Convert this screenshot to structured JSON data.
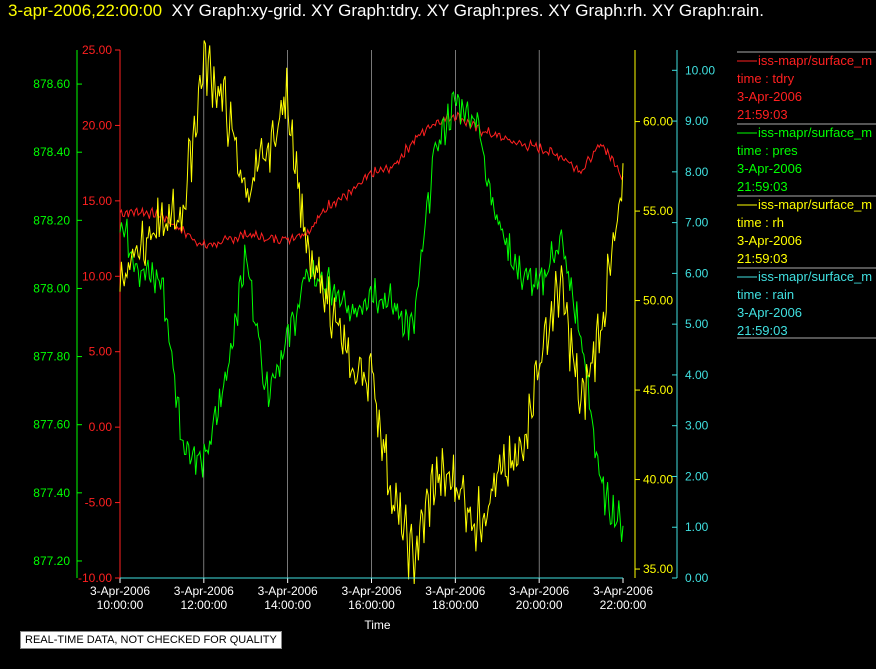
{
  "header": {
    "timestamp": "3-apr-2006,22:00:00",
    "graph_titles": "XY Graph:xy-grid.  XY Graph:tdry.  XY Graph:pres.  XY Graph:rh.  XY Graph:rain."
  },
  "notice": "REAL-TIME DATA, NOT CHECKED FOR QUALITY",
  "colors": {
    "tdry": "#ff2020",
    "pres": "#00ff00",
    "rh": "#ffff00",
    "rain": "#40e0e0",
    "grid": "#c8c8c8"
  },
  "chart_data": {
    "type": "line",
    "xlabel": "Time",
    "xlim": [
      "3-Apr-2006 10:00:00",
      "3-Apr-2006 22:00:00"
    ],
    "x_ticks": [
      {
        "date": "3-Apr-2006",
        "time": "10:00:00"
      },
      {
        "date": "3-Apr-2006",
        "time": "12:00:00"
      },
      {
        "date": "3-Apr-2006",
        "time": "14:00:00"
      },
      {
        "date": "3-Apr-2006",
        "time": "16:00:00"
      },
      {
        "date": "3-Apr-2006",
        "time": "18:00:00"
      },
      {
        "date": "3-Apr-2006",
        "time": "20:00:00"
      },
      {
        "date": "3-Apr-2006",
        "time": "22:00:00"
      }
    ],
    "axes": {
      "pres": {
        "ylim": [
          877.15,
          878.7
        ],
        "ticks": [
          "878.60",
          "878.40",
          "878.20",
          "878.00",
          "877.80",
          "877.60",
          "877.40",
          "877.20"
        ]
      },
      "tdry": {
        "ylim": [
          -10,
          25
        ],
        "ticks": [
          "25.00",
          "20.00",
          "15.00",
          "10.00",
          "5.00",
          "0.00",
          "-5.00",
          "-10.00"
        ]
      },
      "rh": {
        "ylim": [
          34.5,
          64
        ],
        "ticks": [
          "60.00",
          "55.00",
          "50.00",
          "45.00",
          "40.00",
          "35.00"
        ]
      },
      "rain": {
        "ylim": [
          0,
          10.4
        ],
        "ticks": [
          "10.00",
          "9.00",
          "8.00",
          "7.00",
          "6.00",
          "5.00",
          "4.00",
          "3.00",
          "2.00",
          "1.00",
          "0.00"
        ]
      }
    },
    "series": [
      {
        "name": "tdry",
        "axis": "tdry",
        "x": [
          "3-Apr-2006 10:00:00",
          "3-Apr-2006 10:30:00",
          "3-Apr-2006 11:00:00",
          "3-Apr-2006 11:30:00",
          "3-Apr-2006 12:00:00",
          "3-Apr-2006 12:30:00",
          "3-Apr-2006 13:00:00",
          "3-Apr-2006 13:30:00",
          "3-Apr-2006 14:00:00",
          "3-Apr-2006 14:30:00",
          "3-Apr-2006 15:00:00",
          "3-Apr-2006 15:30:00",
          "3-Apr-2006 16:00:00",
          "3-Apr-2006 16:30:00",
          "3-Apr-2006 17:00:00",
          "3-Apr-2006 17:30:00",
          "3-Apr-2006 18:00:00",
          "3-Apr-2006 18:30:00",
          "3-Apr-2006 19:00:00",
          "3-Apr-2006 19:30:00",
          "3-Apr-2006 20:00:00",
          "3-Apr-2006 20:30:00",
          "3-Apr-2006 21:00:00",
          "3-Apr-2006 21:30:00",
          "3-Apr-2006 22:00:00"
        ],
        "y": [
          14.2,
          14.3,
          14.0,
          13.0,
          12.0,
          12.3,
          12.8,
          12.5,
          12.5,
          13.0,
          14.8,
          15.5,
          16.8,
          17.2,
          19.0,
          20.2,
          20.7,
          19.8,
          19.3,
          18.8,
          18.5,
          18.0,
          17.0,
          18.8,
          16.6
        ]
      },
      {
        "name": "pres",
        "axis": "pres",
        "x": [
          "3-Apr-2006 10:00:00",
          "3-Apr-2006 10:30:00",
          "3-Apr-2006 11:00:00",
          "3-Apr-2006 11:30:00",
          "3-Apr-2006 12:00:00",
          "3-Apr-2006 12:30:00",
          "3-Apr-2006 13:00:00",
          "3-Apr-2006 13:30:00",
          "3-Apr-2006 14:00:00",
          "3-Apr-2006 14:30:00",
          "3-Apr-2006 15:00:00",
          "3-Apr-2006 15:30:00",
          "3-Apr-2006 16:00:00",
          "3-Apr-2006 16:30:00",
          "3-Apr-2006 17:00:00",
          "3-Apr-2006 17:30:00",
          "3-Apr-2006 18:00:00",
          "3-Apr-2006 18:30:00",
          "3-Apr-2006 19:00:00",
          "3-Apr-2006 19:30:00",
          "3-Apr-2006 20:00:00",
          "3-Apr-2006 20:30:00",
          "3-Apr-2006 21:00:00",
          "3-Apr-2006 21:30:00",
          "3-Apr-2006 22:00:00"
        ],
        "y": [
          878.2,
          878.05,
          878.02,
          877.55,
          877.48,
          877.72,
          878.1,
          877.7,
          877.85,
          878.05,
          878.0,
          877.92,
          878.0,
          877.95,
          877.88,
          878.4,
          878.55,
          878.5,
          878.2,
          878.05,
          878.0,
          878.15,
          877.85,
          877.4,
          877.3
        ]
      },
      {
        "name": "rh",
        "axis": "rh",
        "x": [
          "3-Apr-2006 10:00:00",
          "3-Apr-2006 10:30:00",
          "3-Apr-2006 11:00:00",
          "3-Apr-2006 11:30:00",
          "3-Apr-2006 12:00:00",
          "3-Apr-2006 12:30:00",
          "3-Apr-2006 13:00:00",
          "3-Apr-2006 13:30:00",
          "3-Apr-2006 14:00:00",
          "3-Apr-2006 14:30:00",
          "3-Apr-2006 15:00:00",
          "3-Apr-2006 15:30:00",
          "3-Apr-2006 16:00:00",
          "3-Apr-2006 16:30:00",
          "3-Apr-2006 17:00:00",
          "3-Apr-2006 17:30:00",
          "3-Apr-2006 18:00:00",
          "3-Apr-2006 18:30:00",
          "3-Apr-2006 19:00:00",
          "3-Apr-2006 19:30:00",
          "3-Apr-2006 20:00:00",
          "3-Apr-2006 20:30:00",
          "3-Apr-2006 21:00:00",
          "3-Apr-2006 21:30:00",
          "3-Apr-2006 22:00:00"
        ],
        "y": [
          51.0,
          53.5,
          54.0,
          55.0,
          63.5,
          61.0,
          56.0,
          58.0,
          61.5,
          52.0,
          50.0,
          46.0,
          46.0,
          39.0,
          35.5,
          40.0,
          40.0,
          37.5,
          40.0,
          41.0,
          46.5,
          51.0,
          44.0,
          49.0,
          56.0
        ]
      },
      {
        "name": "rain",
        "axis": "rain",
        "x": [
          "3-Apr-2006 10:00:00",
          "3-Apr-2006 22:00:00"
        ],
        "y": [
          0.0,
          0.0
        ]
      }
    ],
    "legend_position": "right",
    "legend": [
      {
        "name": "iss-mapr/surface_m",
        "label": "time : tdry",
        "date": "3-Apr-2006",
        "time": "21:59:03"
      },
      {
        "name": "iss-mapr/surface_m",
        "label": "time : pres",
        "date": "3-Apr-2006",
        "time": "21:59:03"
      },
      {
        "name": "iss-mapr/surface_m",
        "label": "time : rh",
        "date": "3-Apr-2006",
        "time": "21:59:03"
      },
      {
        "name": "iss-mapr/surface_m",
        "label": "time : rain",
        "date": "3-Apr-2006",
        "time": "21:59:03"
      }
    ]
  }
}
